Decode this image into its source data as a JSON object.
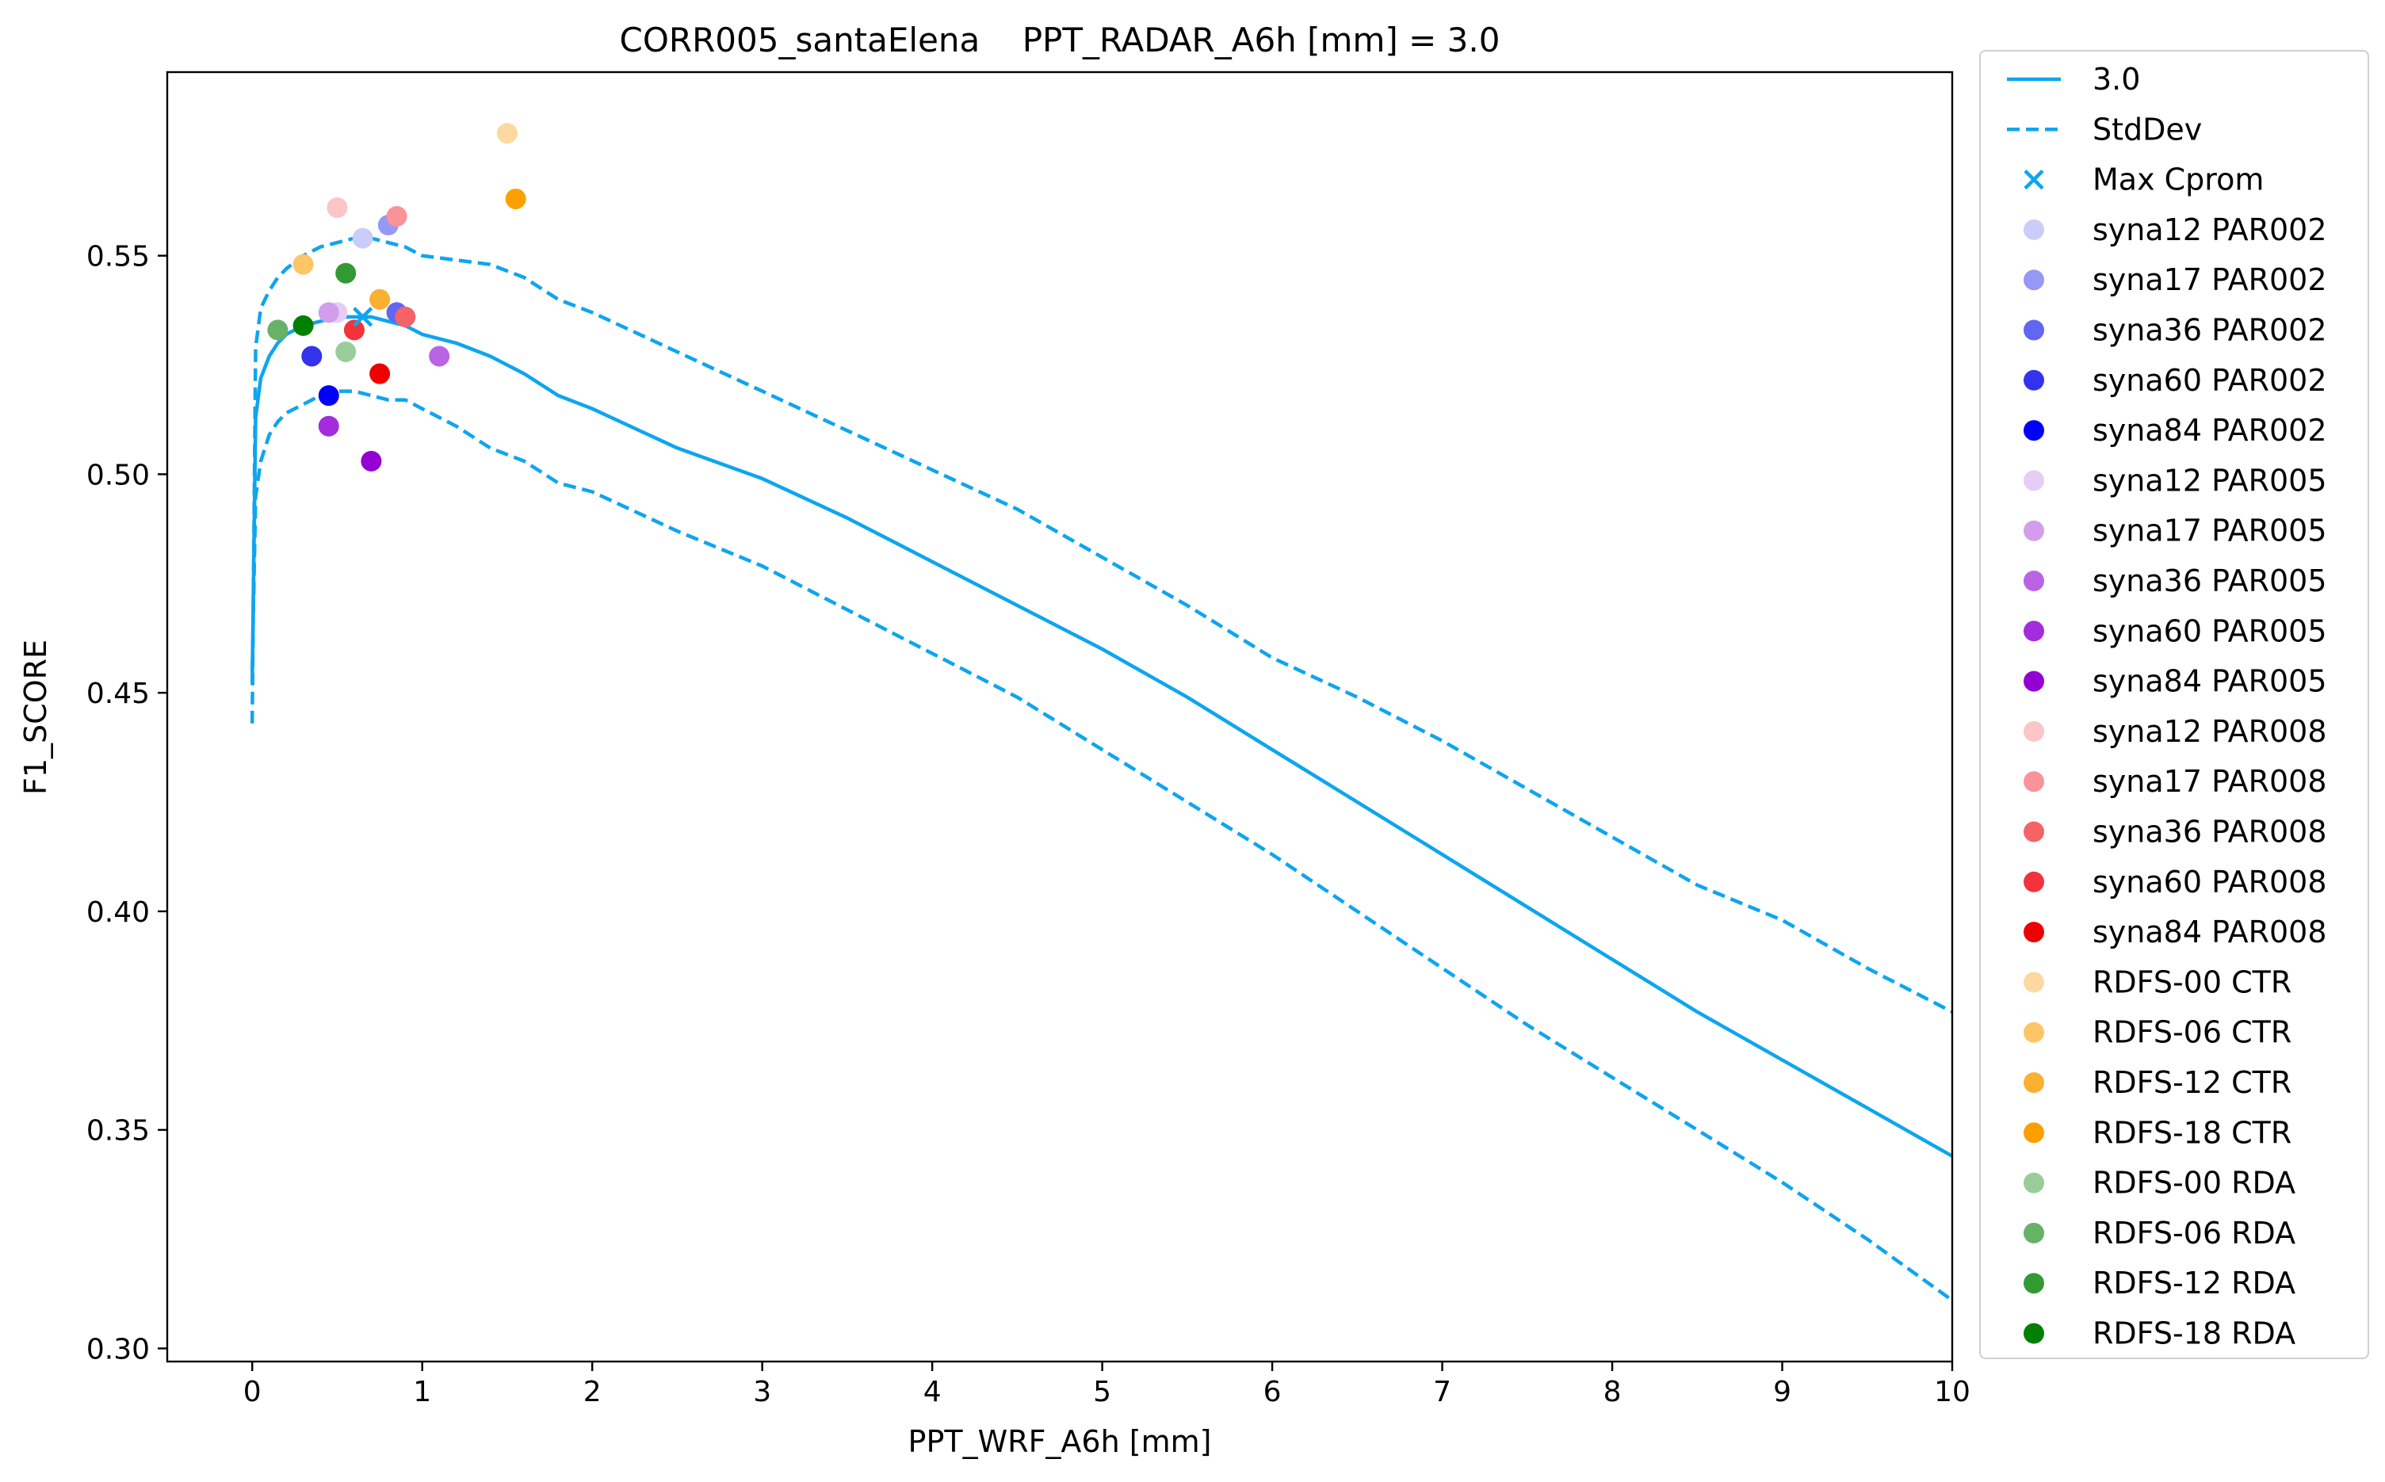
{
  "chart_data": {
    "type": "line",
    "title": "CORR005_santaElena    PPT_RADAR_A6h [mm] = 3.0",
    "xlabel": "PPT_WRF_A6h [mm]",
    "ylabel": "F1_SCORE",
    "xlim": [
      -0.5,
      10
    ],
    "ylim": [
      0.297,
      0.592
    ],
    "xticks": [
      0,
      1,
      2,
      3,
      4,
      5,
      6,
      7,
      8,
      9,
      10
    ],
    "yticks": [
      0.3,
      0.35,
      0.4,
      0.45,
      0.5,
      0.55
    ],
    "ytick_labels": [
      "0.30",
      "0.35",
      "0.40",
      "0.45",
      "0.50",
      "0.55"
    ],
    "grid": false,
    "legend_position": "outside-right",
    "line_color": "#0ea5ef",
    "series": [
      {
        "name": "3.0",
        "style": "solid",
        "x": [
          0,
          0.02,
          0.05,
          0.1,
          0.15,
          0.2,
          0.3,
          0.4,
          0.5,
          0.6,
          0.7,
          0.8,
          0.9,
          1.0,
          1.2,
          1.4,
          1.6,
          1.8,
          2.0,
          2.5,
          3.0,
          3.5,
          4.0,
          4.5,
          5.0,
          5.5,
          6.0,
          6.5,
          7.0,
          7.5,
          8.0,
          8.5,
          9.0,
          9.5,
          10.0
        ],
        "y": [
          0.452,
          0.513,
          0.522,
          0.527,
          0.53,
          0.532,
          0.534,
          0.535,
          0.536,
          0.536,
          0.536,
          0.535,
          0.534,
          0.532,
          0.53,
          0.527,
          0.523,
          0.518,
          0.515,
          0.506,
          0.499,
          0.49,
          0.48,
          0.47,
          0.46,
          0.449,
          0.437,
          0.425,
          0.413,
          0.401,
          0.389,
          0.377,
          0.366,
          0.355,
          0.344
        ]
      },
      {
        "name": "StdDev",
        "style": "dashed",
        "x": [
          0,
          0.02,
          0.05,
          0.1,
          0.15,
          0.2,
          0.3,
          0.4,
          0.5,
          0.6,
          0.7,
          0.8,
          0.9,
          1.0,
          1.2,
          1.4,
          1.6,
          1.8,
          2.0,
          2.5,
          3.0,
          3.5,
          4.0,
          4.5,
          5.0,
          5.5,
          6.0,
          6.5,
          7.0,
          7.5,
          8.0,
          8.5,
          9.0,
          9.5,
          10.0
        ],
        "y": [
          0.443,
          0.529,
          0.538,
          0.542,
          0.545,
          0.547,
          0.55,
          0.552,
          0.553,
          0.554,
          0.554,
          0.553,
          0.552,
          0.55,
          0.549,
          0.548,
          0.545,
          0.54,
          0.537,
          0.528,
          0.519,
          0.51,
          0.501,
          0.492,
          0.481,
          0.47,
          0.458,
          0.449,
          0.439,
          0.428,
          0.417,
          0.406,
          0.398,
          0.387,
          0.377
        ]
      },
      {
        "name": "",
        "style": "dashed",
        "x": [
          0,
          0.02,
          0.05,
          0.1,
          0.15,
          0.2,
          0.3,
          0.4,
          0.5,
          0.6,
          0.7,
          0.8,
          0.9,
          1.0,
          1.2,
          1.4,
          1.6,
          1.8,
          2.0,
          2.5,
          3.0,
          3.5,
          4.0,
          4.5,
          5.0,
          5.5,
          6.0,
          6.5,
          7.0,
          7.5,
          8.0,
          8.5,
          9.0,
          9.5,
          10.0
        ],
        "y": [
          0.455,
          0.495,
          0.503,
          0.509,
          0.512,
          0.514,
          0.516,
          0.518,
          0.519,
          0.519,
          0.518,
          0.517,
          0.517,
          0.515,
          0.511,
          0.506,
          0.503,
          0.498,
          0.496,
          0.487,
          0.479,
          0.469,
          0.459,
          0.449,
          0.437,
          0.425,
          0.413,
          0.4,
          0.387,
          0.374,
          0.362,
          0.35,
          0.338,
          0.325,
          0.311
        ]
      }
    ],
    "max_marker": {
      "name": "Max Cprom",
      "x": 0.65,
      "y": 0.536,
      "marker": "x",
      "color": "#0ea5ef"
    },
    "scatter": [
      {
        "name": "syna12 PAR002",
        "x": 0.65,
        "y": 0.554,
        "color": "#c9cdf8"
      },
      {
        "name": "syna17 PAR002",
        "x": 0.8,
        "y": 0.557,
        "color": "#9598f5"
      },
      {
        "name": "syna36 PAR002",
        "x": 0.85,
        "y": 0.537,
        "color": "#6266f2"
      },
      {
        "name": "syna60 PAR002",
        "x": 0.35,
        "y": 0.527,
        "color": "#3333ee"
      },
      {
        "name": "syna84 PAR002",
        "x": 0.45,
        "y": 0.518,
        "color": "#0000ff"
      },
      {
        "name": "syna12 PAR005",
        "x": 0.5,
        "y": 0.537,
        "color": "#e5cdf5"
      },
      {
        "name": "syna17 PAR005",
        "x": 0.45,
        "y": 0.537,
        "color": "#d39ded"
      },
      {
        "name": "syna36 PAR005",
        "x": 1.1,
        "y": 0.527,
        "color": "#b964e4"
      },
      {
        "name": "syna60 PAR005",
        "x": 0.45,
        "y": 0.511,
        "color": "#a32cdf"
      },
      {
        "name": "syna84 PAR005",
        "x": 0.7,
        "y": 0.503,
        "color": "#9400d3"
      },
      {
        "name": "syna12 PAR008",
        "x": 0.5,
        "y": 0.561,
        "color": "#fcc5c8"
      },
      {
        "name": "syna17 PAR008",
        "x": 0.85,
        "y": 0.559,
        "color": "#f99397"
      },
      {
        "name": "syna36 PAR008",
        "x": 0.9,
        "y": 0.536,
        "color": "#f56367"
      },
      {
        "name": "syna60 PAR008",
        "x": 0.6,
        "y": 0.533,
        "color": "#f2333a"
      },
      {
        "name": "syna84 PAR008",
        "x": 0.75,
        "y": 0.523,
        "color": "#ef0000"
      },
      {
        "name": "RDFS-00 CTR",
        "x": 1.5,
        "y": 0.578,
        "color": "#fcd9a0"
      },
      {
        "name": "RDFS-06 CTR",
        "x": 0.3,
        "y": 0.548,
        "color": "#fcc666"
      },
      {
        "name": "RDFS-12 CTR",
        "x": 0.75,
        "y": 0.54,
        "color": "#fbb031"
      },
      {
        "name": "RDFS-18 CTR",
        "x": 1.55,
        "y": 0.563,
        "color": "#fba000"
      },
      {
        "name": "RDFS-00 RDA",
        "x": 0.55,
        "y": 0.528,
        "color": "#99cc99"
      },
      {
        "name": "RDFS-06 RDA",
        "x": 0.15,
        "y": 0.533,
        "color": "#66b266"
      },
      {
        "name": "RDFS-12 RDA",
        "x": 0.55,
        "y": 0.546,
        "color": "#339933"
      },
      {
        "name": "RDFS-18 RDA",
        "x": 0.3,
        "y": 0.534,
        "color": "#008000"
      }
    ]
  }
}
